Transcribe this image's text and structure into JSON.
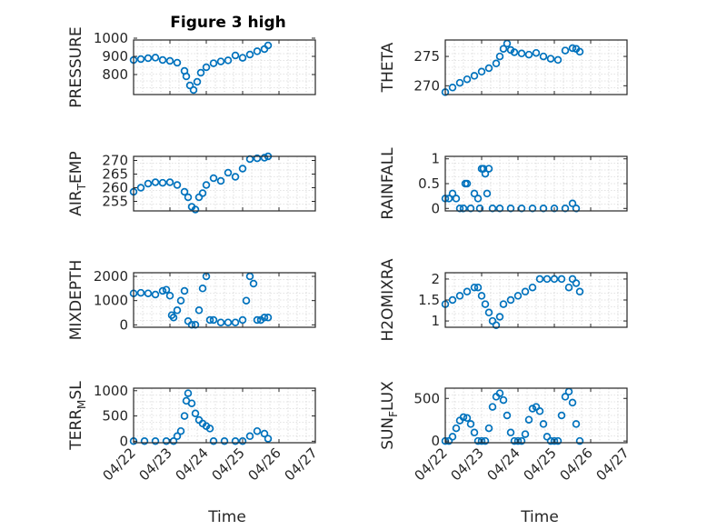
{
  "figure": {
    "title": "Figure 3 high",
    "marker_color": "#0072BD"
  },
  "chart_data": [
    {
      "type": "scatter",
      "ylabel": "PRESSURE",
      "title": "Figure 3 high",
      "xlim": [
        0,
        5
      ],
      "ylim": [
        690,
        990
      ],
      "yticks": [
        800,
        900,
        1000
      ],
      "ytick_labels": [
        "800",
        "900",
        "1000"
      ],
      "xticks": [
        0,
        1,
        2,
        3,
        4,
        5
      ],
      "x": [
        0.0,
        0.2,
        0.4,
        0.6,
        0.8,
        1.0,
        1.2,
        1.4,
        1.45,
        1.55,
        1.65,
        1.75,
        1.85,
        2.0,
        2.2,
        2.4,
        2.6,
        2.8,
        3.0,
        3.2,
        3.4,
        3.6,
        3.7
      ],
      "y": [
        880,
        885,
        890,
        893,
        880,
        875,
        865,
        820,
        790,
        740,
        715,
        760,
        810,
        840,
        862,
        872,
        878,
        905,
        892,
        910,
        928,
        940,
        960
      ]
    },
    {
      "type": "scatter",
      "ylabel": "THETA",
      "xlim": [
        0,
        5
      ],
      "ylim": [
        268.5,
        277.8
      ],
      "yticks": [
        270,
        275
      ],
      "ytick_labels": [
        "270",
        "275"
      ],
      "xticks": [
        0,
        1,
        2,
        3,
        4,
        5
      ],
      "x": [
        0.0,
        0.2,
        0.4,
        0.6,
        0.8,
        1.0,
        1.2,
        1.4,
        1.5,
        1.6,
        1.7,
        1.8,
        1.9,
        2.1,
        2.3,
        2.5,
        2.7,
        2.9,
        3.1,
        3.3,
        3.5,
        3.6,
        3.7
      ],
      "y": [
        268.9,
        269.7,
        270.5,
        271.1,
        271.7,
        272.4,
        273.0,
        273.8,
        275.0,
        276.3,
        277.2,
        276.1,
        275.7,
        275.5,
        275.3,
        275.6,
        275.0,
        274.6,
        274.4,
        276.0,
        276.4,
        276.3,
        275.8
      ]
    },
    {
      "type": "scatter",
      "ylabel": "AIR_TEMP",
      "ylabel_main": "AIR",
      "ylabel_sub": "T",
      "ylabel_rest": "EMP",
      "xlim": [
        0,
        5
      ],
      "ylim": [
        251.5,
        271.5
      ],
      "yticks": [
        255,
        260,
        265,
        270
      ],
      "ytick_labels": [
        "255",
        "260",
        "265",
        "270"
      ],
      "xticks": [
        0,
        1,
        2,
        3,
        4,
        5
      ],
      "x": [
        0.0,
        0.2,
        0.4,
        0.6,
        0.8,
        1.0,
        1.2,
        1.4,
        1.5,
        1.6,
        1.7,
        1.8,
        1.9,
        2.0,
        2.2,
        2.4,
        2.6,
        2.8,
        3.0,
        3.2,
        3.4,
        3.6,
        3.7
      ],
      "y": [
        258.5,
        260.0,
        261.5,
        262.0,
        261.8,
        262.0,
        261.0,
        258.5,
        256.5,
        253.0,
        252.0,
        256.5,
        258.0,
        261.0,
        263.5,
        262.5,
        265.5,
        264.0,
        267.0,
        270.5,
        270.8,
        271.0,
        271.5
      ]
    },
    {
      "type": "scatter",
      "ylabel": "RAINFALL",
      "xlim": [
        0,
        5
      ],
      "ylim": [
        -0.05,
        1.05
      ],
      "yticks": [
        0,
        0.5,
        1
      ],
      "ytick_labels": [
        "0",
        "0.5",
        "1"
      ],
      "xticks": [
        0,
        1,
        2,
        3,
        4,
        5
      ],
      "x": [
        0.0,
        0.1,
        0.2,
        0.3,
        0.4,
        0.5,
        0.55,
        0.6,
        0.7,
        0.8,
        0.9,
        0.95,
        1.0,
        1.05,
        1.1,
        1.15,
        1.2,
        1.3,
        1.5,
        1.8,
        2.1,
        2.4,
        2.7,
        3.0,
        3.3,
        3.5,
        3.6
      ],
      "y": [
        0.2,
        0.2,
        0.3,
        0.2,
        0.0,
        0.0,
        0.5,
        0.5,
        0.0,
        0.3,
        0.2,
        0.0,
        0.8,
        0.8,
        0.7,
        0.3,
        0.8,
        0.0,
        0.0,
        0.0,
        0.0,
        0.0,
        0.0,
        0.0,
        0.0,
        0.1,
        0.0
      ]
    },
    {
      "type": "scatter",
      "ylabel": "MIXDEPTH",
      "xlim": [
        0,
        5
      ],
      "ylim": [
        -100,
        2150
      ],
      "yticks": [
        0,
        1000,
        2000
      ],
      "ytick_labels": [
        "0",
        "1000",
        "2000"
      ],
      "xticks": [
        0,
        1,
        2,
        3,
        4,
        5
      ],
      "x": [
        0.0,
        0.2,
        0.4,
        0.6,
        0.8,
        0.9,
        1.0,
        1.05,
        1.1,
        1.2,
        1.3,
        1.4,
        1.5,
        1.6,
        1.7,
        1.8,
        1.9,
        2.0,
        2.1,
        2.2,
        2.4,
        2.6,
        2.8,
        3.0,
        3.1,
        3.2,
        3.3,
        3.4,
        3.5,
        3.6,
        3.7
      ],
      "y": [
        1300,
        1320,
        1300,
        1250,
        1400,
        1450,
        1200,
        400,
        300,
        600,
        1000,
        1400,
        150,
        0,
        0,
        600,
        1500,
        2000,
        200,
        200,
        100,
        100,
        100,
        200,
        1000,
        2000,
        1700,
        200,
        200,
        300,
        300
      ]
    },
    {
      "type": "scatter",
      "ylabel": "H2OMIXRA",
      "xlim": [
        0,
        5
      ],
      "ylim": [
        0.85,
        2.15
      ],
      "yticks": [
        1,
        1.5,
        2
      ],
      "ytick_labels": [
        "1",
        "1.5",
        "2"
      ],
      "xticks": [
        0,
        1,
        2,
        3,
        4,
        5
      ],
      "x": [
        0.0,
        0.2,
        0.4,
        0.6,
        0.8,
        0.9,
        1.0,
        1.1,
        1.2,
        1.3,
        1.4,
        1.5,
        1.6,
        1.8,
        2.0,
        2.2,
        2.4,
        2.6,
        2.8,
        3.0,
        3.2,
        3.4,
        3.5,
        3.6,
        3.7
      ],
      "y": [
        1.4,
        1.5,
        1.6,
        1.7,
        1.8,
        1.8,
        1.6,
        1.4,
        1.2,
        1.0,
        0.9,
        1.1,
        1.4,
        1.5,
        1.6,
        1.7,
        1.8,
        2.0,
        2.0,
        2.0,
        2.0,
        1.8,
        2.0,
        1.9,
        1.7
      ]
    },
    {
      "type": "scatter",
      "ylabel": "TERR_MSL",
      "ylabel_main": "TERR",
      "ylabel_sub": "M",
      "ylabel_rest": "SL",
      "xlim": [
        0,
        5
      ],
      "ylim": [
        -30,
        1050
      ],
      "yticks": [
        0,
        500,
        1000
      ],
      "ytick_labels": [
        "0",
        "500",
        "1000"
      ],
      "xticks": [
        0,
        1,
        2,
        3,
        4,
        5
      ],
      "x": [
        0.0,
        0.3,
        0.6,
        0.9,
        1.1,
        1.2,
        1.3,
        1.4,
        1.45,
        1.5,
        1.6,
        1.7,
        1.8,
        1.9,
        2.0,
        2.1,
        2.2,
        2.5,
        2.8,
        3.0,
        3.2,
        3.4,
        3.6,
        3.7
      ],
      "y": [
        0,
        0,
        0,
        0,
        0,
        100,
        200,
        500,
        800,
        950,
        750,
        550,
        420,
        350,
        300,
        250,
        0,
        0,
        0,
        0,
        100,
        200,
        150,
        50
      ]
    },
    {
      "type": "scatter",
      "ylabel": "SUN_FLUX",
      "ylabel_main": "SUN",
      "ylabel_sub": "F",
      "ylabel_rest": "LUX",
      "xlim": [
        0,
        5
      ],
      "ylim": [
        -20,
        620
      ],
      "yticks": [
        0,
        500
      ],
      "ytick_labels": [
        "0",
        "500"
      ],
      "xticks": [
        0,
        1,
        2,
        3,
        4,
        5
      ],
      "x": [
        0.0,
        0.1,
        0.2,
        0.3,
        0.4,
        0.5,
        0.6,
        0.7,
        0.8,
        0.9,
        1.0,
        1.1,
        1.2,
        1.3,
        1.4,
        1.5,
        1.6,
        1.7,
        1.8,
        1.9,
        2.0,
        2.1,
        2.2,
        2.3,
        2.4,
        2.5,
        2.6,
        2.7,
        2.8,
        2.9,
        3.0,
        3.1,
        3.2,
        3.3,
        3.4,
        3.5,
        3.6,
        3.7
      ],
      "y": [
        0,
        0,
        50,
        150,
        240,
        280,
        270,
        200,
        100,
        0,
        0,
        0,
        150,
        400,
        520,
        560,
        480,
        300,
        100,
        0,
        0,
        0,
        80,
        250,
        380,
        400,
        350,
        200,
        50,
        0,
        0,
        0,
        300,
        520,
        580,
        450,
        200,
        0
      ]
    }
  ],
  "x_axis": {
    "tick_labels": [
      "04/22",
      "04/23",
      "04/24",
      "04/25",
      "04/26",
      "04/27"
    ],
    "xlabel": "Time"
  }
}
